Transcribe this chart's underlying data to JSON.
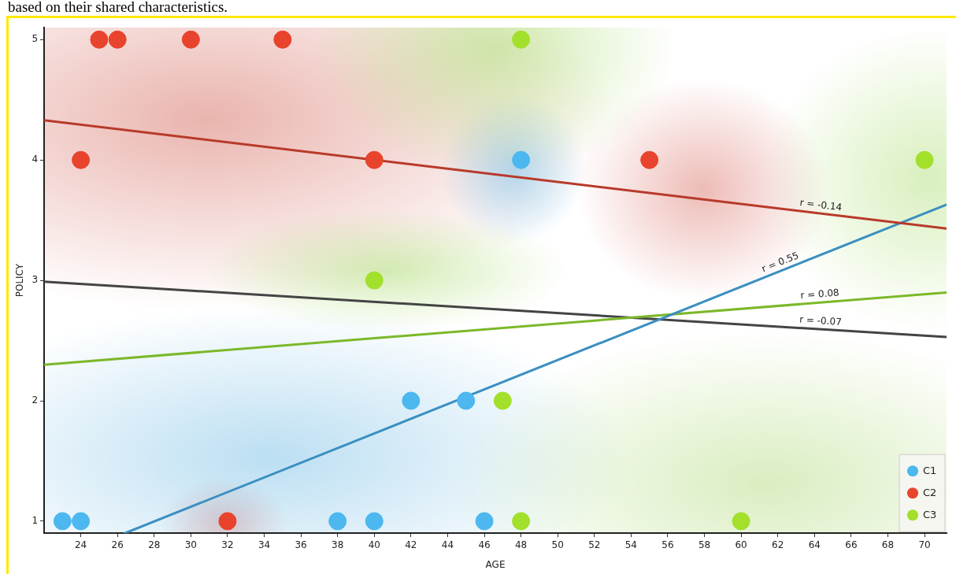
{
  "chart_data": {
    "type": "scatter",
    "annotations": [
      "based on their shared characteristics.",
      "r = -0.14",
      "r = 0.55",
      "r = 0.08",
      "r = -0.07"
    ],
    "xlabel": "AGE",
    "ylabel": "POLICY",
    "xlim": [
      22,
      71.2
    ],
    "ylim": [
      0.9,
      5.1
    ],
    "xticks": [
      24,
      26,
      28,
      30,
      32,
      34,
      36,
      38,
      40,
      42,
      44,
      46,
      48,
      50,
      52,
      54,
      56,
      58,
      60,
      62,
      64,
      66,
      68,
      70
    ],
    "yticks": [
      1,
      2,
      3,
      4,
      5
    ],
    "legend": "bottom right",
    "marker": "circle",
    "series": [
      {
        "name": "C1",
        "type": "scatter",
        "color": "#4cb8ef",
        "x": [
          23,
          24,
          38,
          40,
          46,
          42,
          45,
          48
        ],
        "values": [
          1,
          1,
          1,
          1,
          1,
          2,
          2,
          4
        ]
      },
      {
        "name": "C2",
        "type": "scatter",
        "color": "#e8432c",
        "x": [
          25,
          26,
          30,
          35,
          24,
          40,
          55,
          32
        ],
        "values": [
          5,
          5,
          5,
          5,
          4,
          4,
          4,
          1
        ]
      },
      {
        "name": "C3",
        "type": "scatter",
        "color": "#a2e02c",
        "x": [
          48,
          70,
          40,
          47,
          48,
          60
        ],
        "values": [
          5,
          4,
          3,
          2,
          1,
          1
        ]
      },
      {
        "type": "line",
        "marker": "none",
        "color": "#b83a2a",
        "x": [
          22,
          71.2
        ],
        "values": [
          4.33,
          3.43
        ]
      },
      {
        "type": "line",
        "marker": "none",
        "color": "#3a8fc0",
        "x": [
          26.4,
          71.2
        ],
        "values": [
          0.9,
          3.63
        ]
      },
      {
        "type": "line",
        "marker": "none",
        "color": "#7cb82a",
        "x": [
          22,
          71.2
        ],
        "values": [
          2.3,
          2.9
        ]
      },
      {
        "type": "line",
        "marker": "none",
        "color": "#444444",
        "x": [
          22,
          71.2
        ],
        "values": [
          2.99,
          2.53
        ]
      }
    ]
  }
}
